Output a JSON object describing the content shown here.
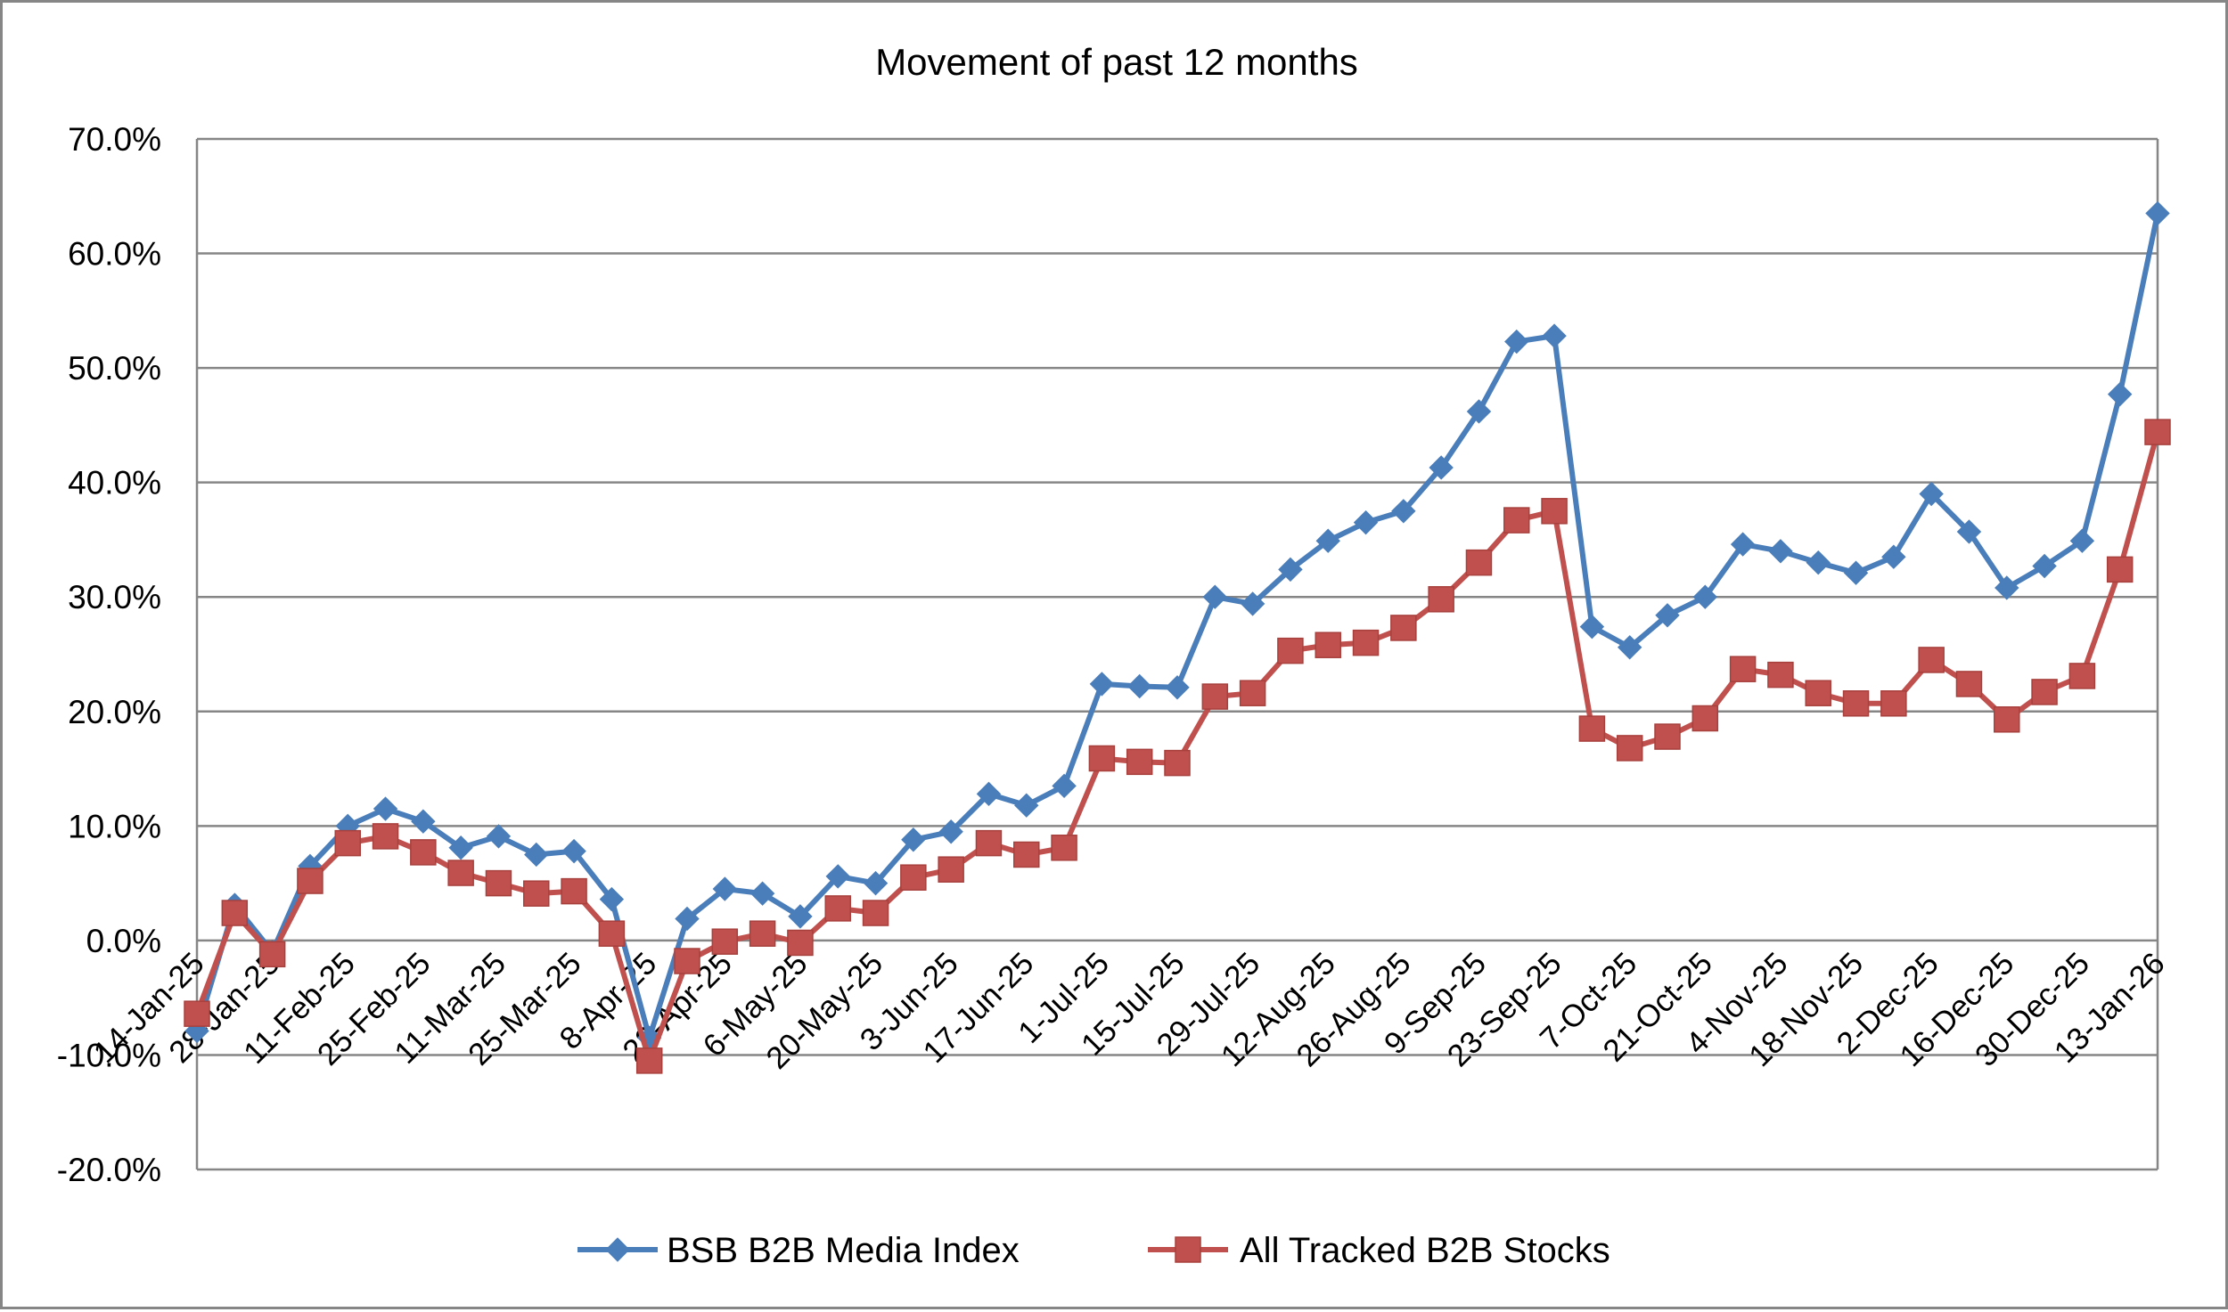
{
  "chart_data": {
    "type": "line",
    "title": "Movement of past 12 months",
    "xlabel": "",
    "ylabel": "",
    "ylim": [
      -0.2,
      0.7
    ],
    "ytick_values": [
      -0.2,
      -0.1,
      0.0,
      0.1,
      0.2,
      0.3,
      0.4,
      0.5,
      0.6,
      0.7
    ],
    "ytick_labels": [
      "-20.0%",
      "-10.0%",
      "0.0%",
      "10.0%",
      "20.0%",
      "30.0%",
      "40.0%",
      "50.0%",
      "60.0%",
      "70.0%"
    ],
    "grid": true,
    "legend_position": "bottom",
    "x": [
      "14-Jan-25",
      "21-Jan-25",
      "28-Jan-25",
      "4-Feb-25",
      "11-Feb-25",
      "18-Feb-25",
      "25-Feb-25",
      "4-Mar-25",
      "11-Mar-25",
      "18-Mar-25",
      "25-Mar-25",
      "1-Apr-25",
      "8-Apr-25",
      "15-Apr-25",
      "22-Apr-25",
      "29-Apr-25",
      "6-May-25",
      "13-May-25",
      "20-May-25",
      "27-May-25",
      "3-Jun-25",
      "10-Jun-25",
      "17-Jun-25",
      "24-Jun-25",
      "1-Jul-25",
      "8-Jul-25",
      "15-Jul-25",
      "22-Jul-25",
      "29-Jul-25",
      "5-Aug-25",
      "12-Aug-25",
      "19-Aug-25",
      "26-Aug-25",
      "2-Sep-25",
      "9-Sep-25",
      "16-Sep-25",
      "23-Sep-25",
      "30-Sep-25",
      "7-Oct-25",
      "14-Oct-25",
      "21-Oct-25",
      "28-Oct-25",
      "4-Nov-25",
      "11-Nov-25",
      "18-Nov-25",
      "25-Nov-25",
      "2-Dec-25",
      "9-Dec-25",
      "16-Dec-25",
      "23-Dec-25",
      "30-Dec-25",
      "6-Jan-26",
      "13-Jan-26"
    ],
    "x_tick_labels": [
      "14-Jan-25",
      "28-Jan-25",
      "11-Feb-25",
      "25-Feb-25",
      "11-Mar-25",
      "25-Mar-25",
      "8-Apr-25",
      "22-Apr-25",
      "6-May-25",
      "20-May-25",
      "3-Jun-25",
      "17-Jun-25",
      "1-Jul-25",
      "15-Jul-25",
      "29-Jul-25",
      "12-Aug-25",
      "26-Aug-25",
      "9-Sep-25",
      "23-Sep-25",
      "7-Oct-25",
      "21-Oct-25",
      "4-Nov-25",
      "18-Nov-25",
      "2-Dec-25",
      "16-Dec-25",
      "30-Dec-25",
      "13-Jan-26"
    ],
    "series": [
      {
        "name": "BSB B2B Media Index",
        "color": "#4a7ebb",
        "marker": "diamond",
        "values": [
          -0.079,
          0.031,
          -0.01,
          0.065,
          0.1,
          0.115,
          0.104,
          0.081,
          0.091,
          0.075,
          0.078,
          0.036,
          -0.085,
          0.019,
          0.045,
          0.041,
          0.021,
          0.056,
          0.05,
          0.088,
          0.095,
          0.128,
          0.118,
          0.135,
          0.224,
          0.222,
          0.221,
          0.3,
          0.294,
          0.324,
          0.349,
          0.365,
          0.375,
          0.413,
          0.462,
          0.523,
          0.528,
          0.274,
          0.256,
          0.284,
          0.3,
          0.346,
          0.34,
          0.33,
          0.321,
          0.335,
          0.39,
          0.357,
          0.308,
          0.327,
          0.349,
          0.477,
          0.635
        ]
      },
      {
        "name": "All Tracked B2B Stocks",
        "color": "#c0504d",
        "marker": "square",
        "values": [
          -0.064,
          0.024,
          -0.012,
          0.052,
          0.085,
          0.091,
          0.077,
          0.059,
          0.05,
          0.041,
          0.043,
          0.006,
          -0.105,
          -0.018,
          -0.001,
          0.006,
          -0.002,
          0.028,
          0.024,
          0.055,
          0.062,
          0.085,
          0.075,
          0.081,
          0.159,
          0.156,
          0.155,
          0.213,
          0.216,
          0.253,
          0.258,
          0.26,
          0.273,
          0.298,
          0.33,
          0.367,
          0.375,
          0.185,
          0.168,
          0.178,
          0.194,
          0.237,
          0.232,
          0.216,
          0.207,
          0.207,
          0.245,
          0.224,
          0.193,
          0.217,
          0.231,
          0.324,
          0.444
        ]
      }
    ]
  }
}
